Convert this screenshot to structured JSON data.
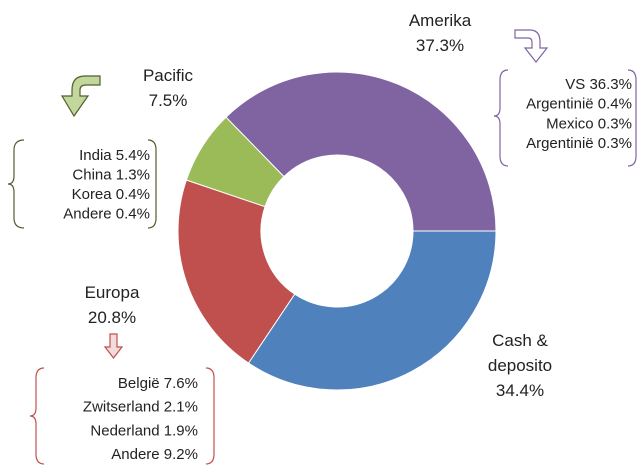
{
  "chart_data": {
    "type": "donut",
    "categories": [
      "Amerika",
      "Cash & deposito",
      "Europa",
      "Pacific"
    ],
    "values": [
      37.3,
      34.4,
      20.8,
      7.5
    ],
    "value_labels": [
      "37.3%",
      "34.4%",
      "20.8%",
      "7.5%"
    ],
    "colors": [
      "#8064a2",
      "#4f81bd",
      "#c0504d",
      "#9bbb59"
    ],
    "breakdowns": [
      {
        "names": [
          "VS",
          "Argentinië",
          "Mexico",
          "Argentinië"
        ],
        "values": [
          36.3,
          0.4,
          0.3,
          0.3
        ],
        "value_labels": [
          "36.3%",
          "0.4%",
          "0.3%",
          "0.3%"
        ]
      },
      {
        "names": [
          "India",
          "China",
          "Korea",
          "Andere"
        ],
        "values": [
          5.4,
          1.3,
          0.4,
          0.4
        ],
        "value_labels": [
          "5.4%",
          "1.3%",
          "0.4%",
          "0.4%"
        ]
      },
      {
        "names": [
          "België",
          "Zwitserland",
          "Nederland",
          "Andere"
        ],
        "values": [
          7.6,
          2.1,
          1.9,
          9.2
        ],
        "value_labels": [
          "7.6%",
          "2.1%",
          "1.9%",
          "9.2%"
        ]
      }
    ]
  }
}
